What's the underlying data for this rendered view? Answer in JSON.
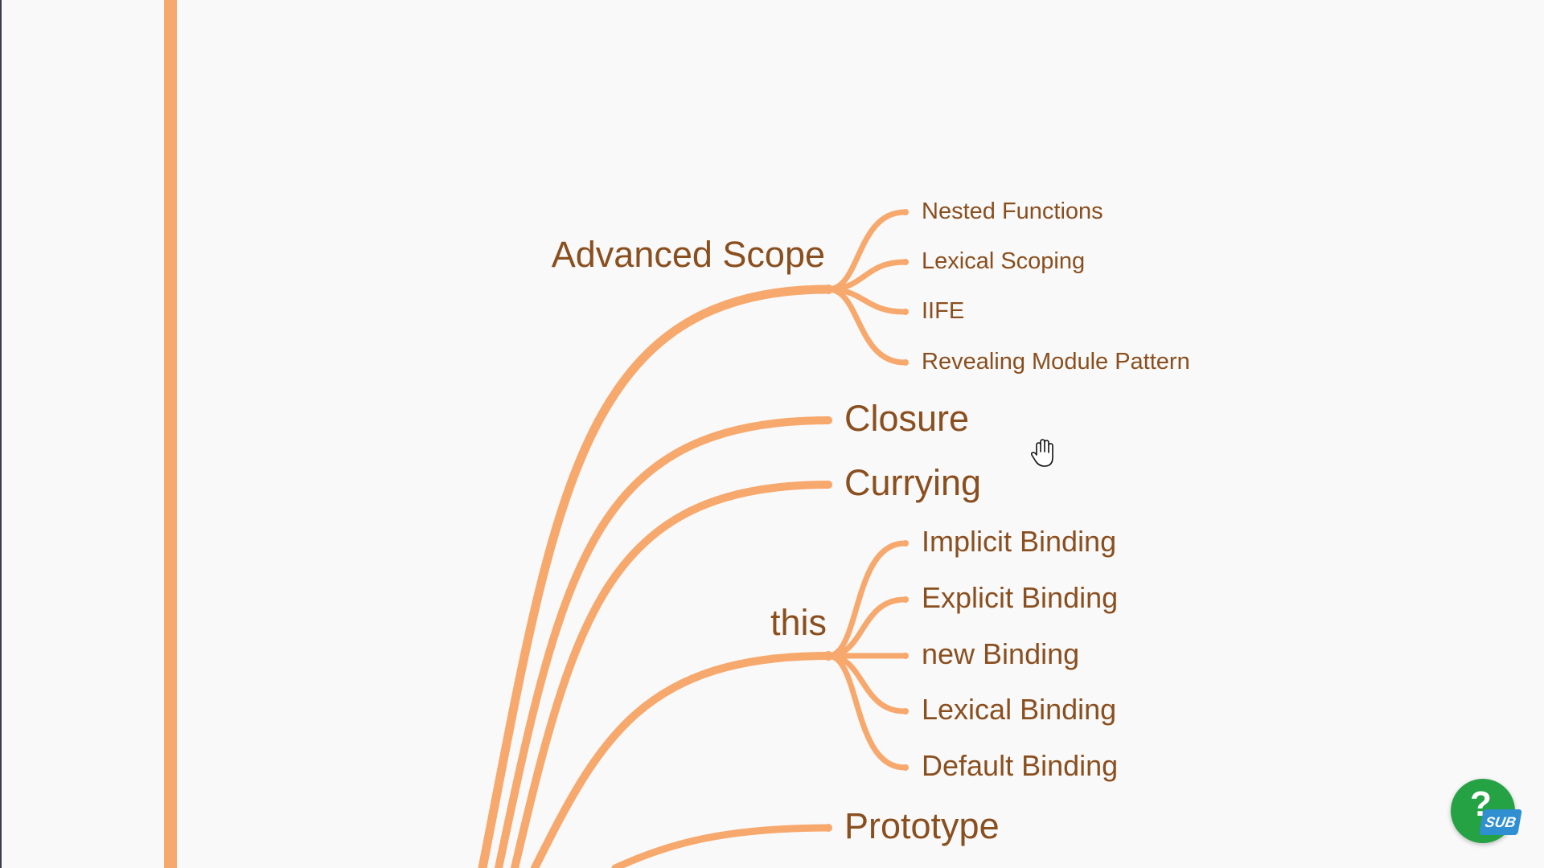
{
  "mindmap": {
    "branches": [
      {
        "label": "Advanced Scope",
        "children": [
          "Nested Functions",
          "Lexical Scoping",
          "IIFE",
          "Revealing Module Pattern"
        ]
      },
      {
        "label": "Closure",
        "children": []
      },
      {
        "label": "Currying",
        "children": []
      },
      {
        "label": "this",
        "children": [
          "Implicit Binding",
          "Explicit Binding",
          "new Binding",
          "Lexical Binding",
          "Default Binding"
        ]
      },
      {
        "label": "Prototype",
        "children": []
      }
    ]
  },
  "colors": {
    "branch_line": "#f7a86d",
    "node_text": "#8a4f1f",
    "background": "#f9f9f9",
    "help_button": "#25a244",
    "sub_badge": "#2f8fd0"
  },
  "cursor": {
    "icon": "open-hand-cursor-icon"
  },
  "help_widget": {
    "icon_text": "?",
    "badge_text": "SUB"
  }
}
